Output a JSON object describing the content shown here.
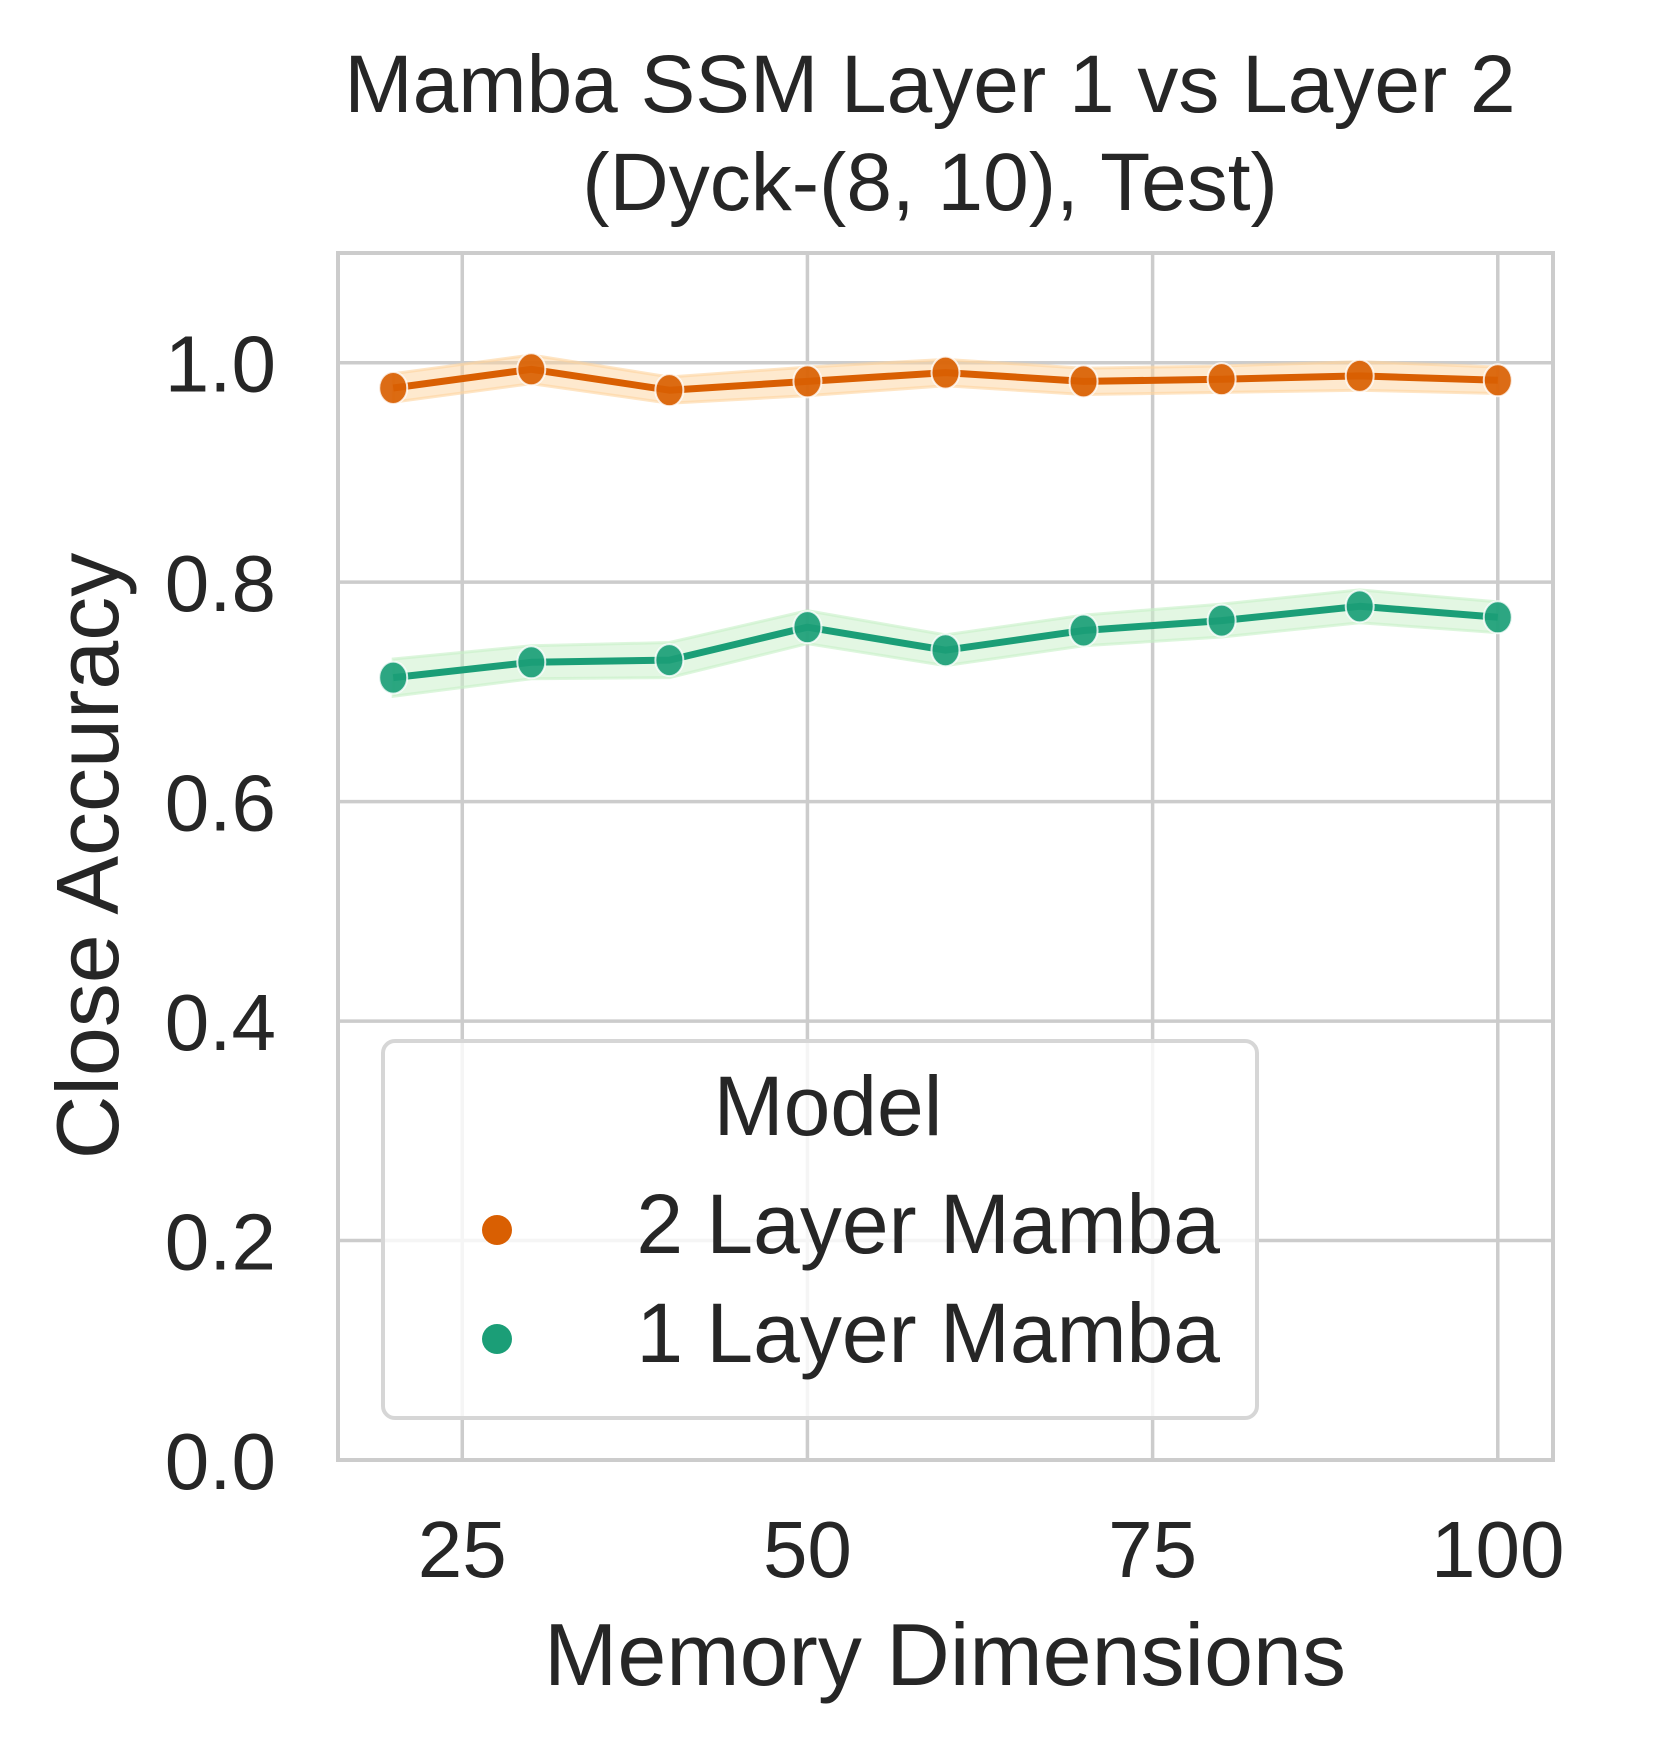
{
  "chart_data": {
    "type": "line",
    "title": "Mamba SSM Layer 1 vs Layer 2",
    "subtitle": "(Dyck-(8, 10), Test)",
    "xlabel": "Memory Dimensions",
    "ylabel": "Close Accuracy",
    "xlim": [
      16,
      104
    ],
    "ylim": [
      0,
      1.1
    ],
    "xticks": [
      25,
      50,
      75,
      100
    ],
    "xtick_labels": [
      "25",
      "50",
      "75",
      "100"
    ],
    "yticks": [
      0.0,
      0.2,
      0.4,
      0.6,
      0.8,
      1.0
    ],
    "ytick_labels": [
      "0.0",
      "0.2",
      "0.4",
      "0.6",
      "0.8",
      "1.0"
    ],
    "grid": true,
    "legend": {
      "title": "Model",
      "placement": "lower-left",
      "entries": [
        "2 Layer Mamba",
        "1 Layer Mamba"
      ]
    },
    "x": [
      20,
      30,
      40,
      50,
      60,
      70,
      80,
      90,
      100
    ],
    "series": [
      {
        "name": "2 Layer Mamba",
        "color": "#d95f02",
        "band_color": "#fdd49e",
        "values": [
          0.977,
          0.994,
          0.975,
          0.983,
          0.991,
          0.983,
          0.985,
          0.988,
          0.984
        ],
        "band_half_width": [
          0.013,
          0.013,
          0.012,
          0.013,
          0.012,
          0.012,
          0.012,
          0.013,
          0.012
        ]
      },
      {
        "name": "1 Layer Mamba",
        "color": "#1b9e77",
        "band_color": "#c7f0c7",
        "values": [
          0.713,
          0.727,
          0.729,
          0.759,
          0.738,
          0.756,
          0.765,
          0.778,
          0.768
        ],
        "band_half_width": [
          0.017,
          0.015,
          0.016,
          0.015,
          0.014,
          0.014,
          0.015,
          0.015,
          0.014
        ]
      }
    ]
  }
}
